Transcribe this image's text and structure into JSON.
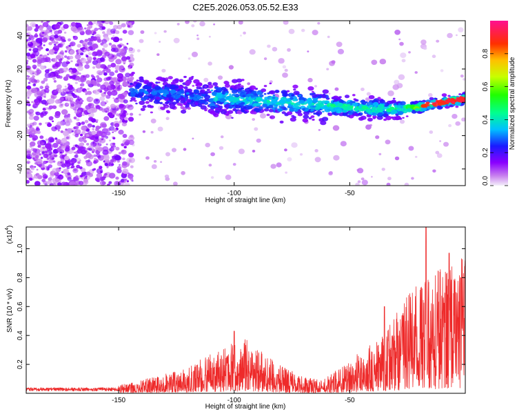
{
  "title": "C2E5.2026.053.05.52.E33",
  "chart_data": [
    {
      "type": "heatmap",
      "name": "spectrogram",
      "xlabel": "Height of straight line (km)",
      "ylabel": "Frequency (Hz)",
      "xlim": [
        -190,
        0
      ],
      "ylim": [
        -50,
        49
      ],
      "xticks": [
        -150,
        -100,
        -50
      ],
      "yticks": [
        -40,
        -20,
        0,
        20,
        40
      ],
      "ridge": {
        "x": [
          -140,
          -130,
          -120,
          -110,
          -100,
          -90,
          -80,
          -70,
          -60,
          -50,
          -40,
          -30,
          -20,
          -15,
          -10,
          -5,
          0
        ],
        "freq": [
          6,
          5,
          4,
          3,
          2,
          1,
          0,
          -1,
          -2,
          -3,
          -4,
          -4,
          -3,
          -1,
          0,
          1,
          2
        ]
      },
      "colorbar": {
        "label": "Normalized spectral amplitude",
        "range": [
          0.0,
          1.0
        ],
        "ticks": [
          0.0,
          0.2,
          0.4,
          0.6,
          0.8
        ],
        "tick_labels": [
          "0.0",
          "0.2",
          "0.4",
          "0.6",
          "0.8"
        ]
      }
    },
    {
      "type": "line",
      "name": "snr",
      "xlabel": "Height of straight line (km)",
      "ylabel": "SNR (10 * v/v)",
      "yscale_label": "(x10",
      "yscale_exp": "4",
      "xlim": [
        -190,
        0
      ],
      "ylim": [
        0,
        1.15
      ],
      "xticks": [
        -150,
        -100,
        -50
      ],
      "yticks": [
        0.2,
        0.4,
        0.6,
        0.8,
        1.0
      ],
      "ytick_labels": [
        "0.2",
        "0.4",
        "0.6",
        "0.8",
        "1.0"
      ],
      "series_color": "#ee2a2a",
      "envelope": {
        "x": [
          -190,
          -150,
          -135,
          -120,
          -110,
          -100,
          -95,
          -90,
          -85,
          -80,
          -75,
          -70,
          -65,
          -60,
          -55,
          -50,
          -45,
          -40,
          -35,
          -30,
          -25,
          -20,
          -15,
          -10,
          -5,
          0
        ],
        "y": [
          0.03,
          0.04,
          0.08,
          0.13,
          0.2,
          0.25,
          0.27,
          0.22,
          0.18,
          0.14,
          0.11,
          0.08,
          0.07,
          0.08,
          0.12,
          0.18,
          0.2,
          0.25,
          0.3,
          0.4,
          0.48,
          0.55,
          0.6,
          0.62,
          0.65,
          0.68
        ]
      },
      "peaks": {
        "x": [
          -100,
          -35,
          -17,
          -7,
          -2
        ],
        "y": [
          0.43,
          0.6,
          1.15,
          0.97,
          0.8
        ]
      }
    }
  ]
}
